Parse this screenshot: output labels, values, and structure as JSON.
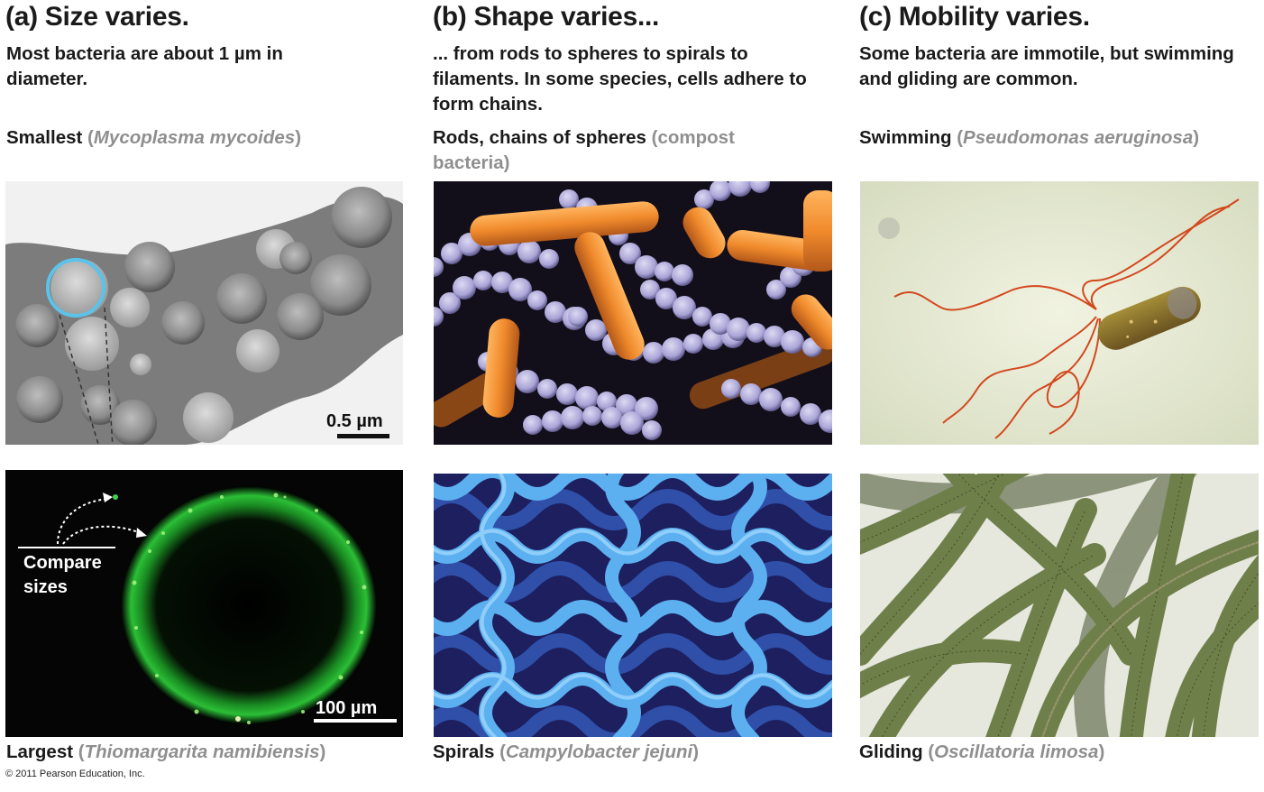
{
  "panels": [
    {
      "title": "(a) Size varies.",
      "description": "Most bacteria are about 1 µm in diameter.",
      "top": {
        "caption": "Smallest",
        "species": "Mycoplasma mycoides",
        "scale_label": "0.5 µm"
      },
      "bottom": {
        "caption": "Largest",
        "species": "Thiomargarita namibiensis",
        "scale_label": "100 µm"
      },
      "compare_label": [
        "Compare",
        "sizes"
      ]
    },
    {
      "title": "(b) Shape varies...",
      "description": "... from rods to spheres to spirals to filaments. In some species, cells adhere to form chains.",
      "top": {
        "caption": "Rods, chains of spheres",
        "species": "compost bacteria"
      },
      "bottom": {
        "caption": "Spirals",
        "species": "Campylobacter jejuni"
      }
    },
    {
      "title": "(c) Mobility varies.",
      "description": "Some bacteria are immotile, but swimming and gliding are common.",
      "top": {
        "caption": "Swimming",
        "species": "Pseudomonas aeruginosa"
      },
      "bottom": {
        "caption": "Gliding",
        "species": "Oscillatoria limosa"
      }
    }
  ],
  "copyright": "© 2011 Pearson Education, Inc.",
  "colors": {
    "text": "#1a1a1a",
    "species_gray": "#8f8f8f",
    "highlight_circle": "#5bc3ea",
    "rod_orange": "#f08a2c",
    "sphere_lavender": "#a9a4d6",
    "spiral_blue": "#5cb0f0",
    "fluorescent_green": "#3cd24a",
    "filament_green": "#6f7f4a"
  }
}
